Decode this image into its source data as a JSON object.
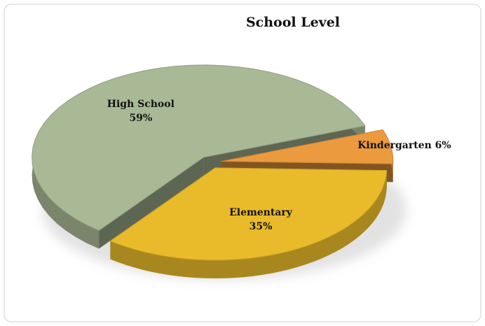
{
  "chart_data": {
    "type": "pie",
    "title": "School Level",
    "categories": [
      "Kindergarten",
      "Elementary",
      "High School"
    ],
    "values": [
      6,
      35,
      59
    ],
    "value_labels": [
      "6%",
      "35%",
      "59%"
    ],
    "colors": [
      "#eb9a3e",
      "#e9bb2a",
      "#a9b996"
    ]
  }
}
